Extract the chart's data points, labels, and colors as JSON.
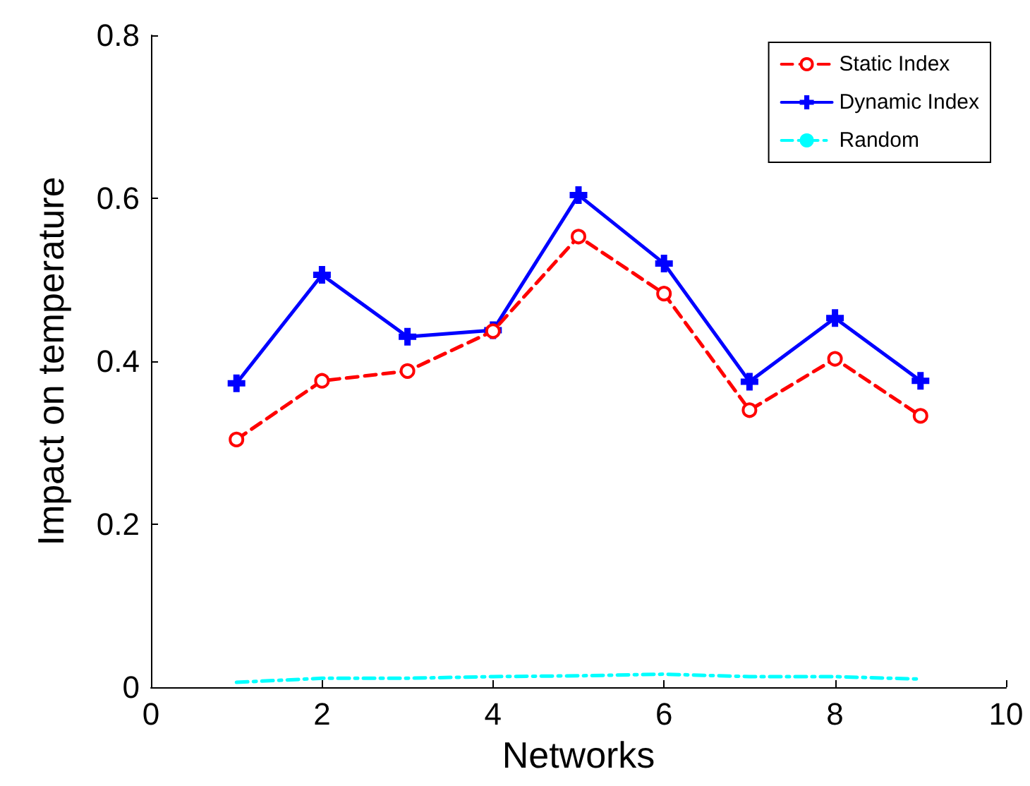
{
  "chart_data": {
    "type": "line",
    "xlabel": "Networks",
    "ylabel": "Impact on temperature",
    "x": [
      1,
      2,
      3,
      4,
      5,
      6,
      7,
      8,
      9
    ],
    "series": [
      {
        "name": "Static Index",
        "color": "#ff0000",
        "marker": "circle",
        "line_style": "dashed",
        "values": [
          0.304,
          0.376,
          0.388,
          0.437,
          0.553,
          0.483,
          0.34,
          0.403,
          0.333
        ]
      },
      {
        "name": "Dynamic Index",
        "color": "#0000ff",
        "marker": "cross",
        "line_style": "solid",
        "values": [
          0.373,
          0.506,
          0.43,
          0.438,
          0.604,
          0.52,
          0.375,
          0.453,
          0.376
        ]
      },
      {
        "name": "Random",
        "color": "#00ffff",
        "marker": "none",
        "line_style": "dashdot",
        "values": [
          0.006,
          0.011,
          0.011,
          0.013,
          0.014,
          0.016,
          0.013,
          0.013,
          0.01
        ]
      }
    ],
    "xlim": [
      0,
      10
    ],
    "xticks": [
      0,
      2,
      4,
      6,
      8,
      10
    ],
    "ylim": [
      0,
      0.8
    ],
    "yticks": [
      0,
      0.2,
      0.4,
      0.6,
      0.8
    ],
    "grid": false,
    "legend": "top right"
  }
}
